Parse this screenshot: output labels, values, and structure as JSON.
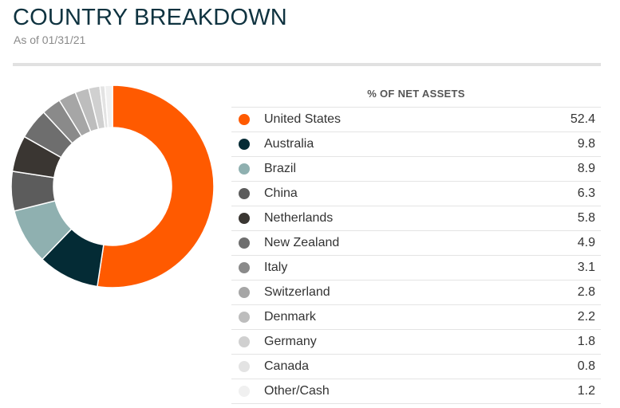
{
  "header": {
    "title": "COUNTRY BREAKDOWN",
    "subtitle": "As of 01/31/21"
  },
  "chart_data": {
    "type": "pie",
    "column_header": "% OF NET ASSETS",
    "slices": [
      {
        "label": "United States",
        "value": 52.4,
        "color": "#ff5a00"
      },
      {
        "label": "Australia",
        "value": 9.8,
        "color": "#042b35"
      },
      {
        "label": "Brazil",
        "value": 8.9,
        "color": "#8fb0b0"
      },
      {
        "label": "China",
        "value": 6.3,
        "color": "#5c5c5c"
      },
      {
        "label": "Netherlands",
        "value": 5.8,
        "color": "#3a3632"
      },
      {
        "label": "New Zealand",
        "value": 4.9,
        "color": "#6e6e6e"
      },
      {
        "label": "Italy",
        "value": 3.1,
        "color": "#8a8a8a"
      },
      {
        "label": "Switzerland",
        "value": 2.8,
        "color": "#a6a6a6"
      },
      {
        "label": "Denmark",
        "value": 2.2,
        "color": "#bdbdbd"
      },
      {
        "label": "Germany",
        "value": 1.8,
        "color": "#d0d0d0"
      },
      {
        "label": "Canada",
        "value": 0.8,
        "color": "#e3e3e3"
      },
      {
        "label": "Other/Cash",
        "value": 1.2,
        "color": "#f0f0f0"
      }
    ]
  }
}
